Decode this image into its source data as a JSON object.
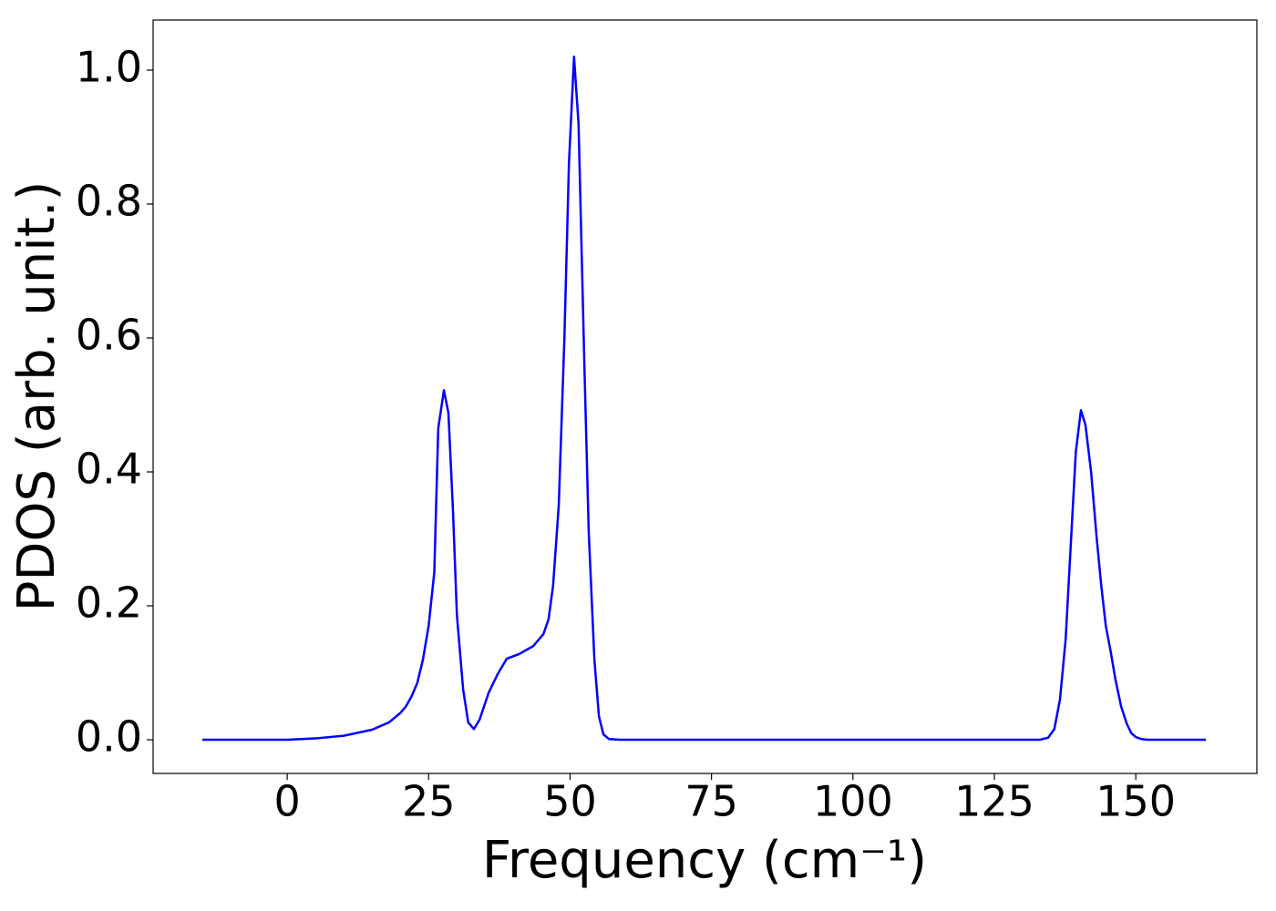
{
  "chart_data": {
    "type": "line",
    "x_label": "Frequency (cm⁻¹)",
    "y_label": "PDOS (arb. unit.)",
    "color": "#0000ff",
    "x": [
      -15,
      0,
      5,
      10,
      15,
      18,
      20,
      21,
      22,
      23,
      24,
      25,
      26,
      26.7,
      27.7,
      28.5,
      29.3,
      30,
      31.1,
      32,
      33,
      34,
      35.6,
      37.2,
      38.8,
      41,
      43.5,
      45.3,
      46.2,
      47,
      48,
      49,
      49.8,
      50.7,
      51.5,
      52.5,
      53.3,
      54.3,
      55.1,
      55.9,
      56.9,
      58.8,
      133,
      134.5,
      135.6,
      136.6,
      137.6,
      138.5,
      139.4,
      140.3,
      141.1,
      142.1,
      143.1,
      143.9,
      144.7,
      145.6,
      146.4,
      147.4,
      148.4,
      149.2,
      150,
      151,
      152,
      162.4
    ],
    "values": [
      0,
      0,
      0.002,
      0.006,
      0.015,
      0.026,
      0.04,
      0.05,
      0.065,
      0.085,
      0.12,
      0.17,
      0.25,
      0.465,
      0.522,
      0.488,
      0.343,
      0.186,
      0.075,
      0.026,
      0.016,
      0.03,
      0.07,
      0.098,
      0.121,
      0.128,
      0.14,
      0.158,
      0.18,
      0.23,
      0.35,
      0.6,
      0.86,
      1.02,
      0.92,
      0.57,
      0.31,
      0.12,
      0.035,
      0.008,
      0.001,
      0,
      0,
      0.003,
      0.016,
      0.06,
      0.15,
      0.29,
      0.43,
      0.492,
      0.47,
      0.4,
      0.3,
      0.23,
      0.17,
      0.13,
      0.09,
      0.05,
      0.024,
      0.01,
      0.004,
      0.001,
      0,
      0
    ],
    "xlim": [
      -23.7,
      171.4
    ],
    "ylim": [
      -0.0503,
      1.0748
    ],
    "xticks": [
      0,
      25,
      50,
      75,
      100,
      125,
      150
    ],
    "yticks": [
      {
        "value": 0,
        "label": "0.0"
      },
      {
        "value": 0.2,
        "label": "0.2"
      },
      {
        "value": 0.4,
        "label": "0.4"
      },
      {
        "value": 0.6,
        "label": "0.6"
      },
      {
        "value": 0.8,
        "label": "0.8"
      },
      {
        "value": 1.0,
        "label": "1.0"
      }
    ]
  }
}
